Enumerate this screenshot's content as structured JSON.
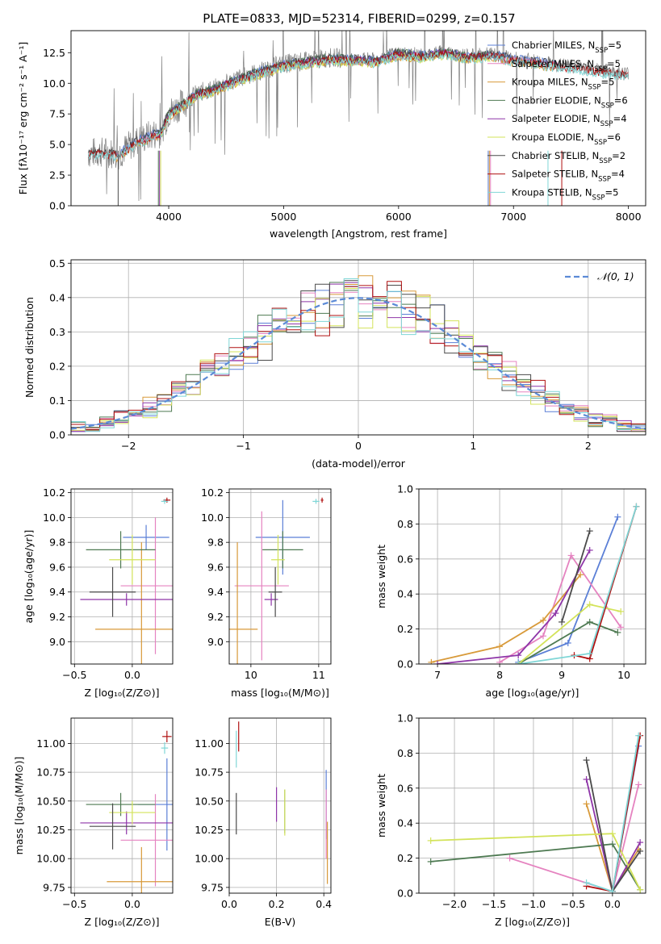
{
  "figure_title": "PLATE=0833, MJD=52314, FIBERID=0299, z=0.157",
  "colors": {
    "Chabrier MILES": "#5b7fd6",
    "Salpeter MILES": "#e583c0",
    "Kroupa MILES": "#d89a3a",
    "Chabrier ELODIE": "#4e7a52",
    "Salpeter ELODIE": "#8e35a8",
    "Kroupa ELODIE": "#d3e35a",
    "Chabrier STELIB": "#4a4a4a",
    "Salpeter STELIB": "#b01010",
    "Kroupa STELIB": "#7fd6d6",
    "normal": "#5b8ad6",
    "grid": "#b0b0b0",
    "orange_track": "#e07820"
  },
  "chart_data": [
    {
      "id": "spectrum",
      "type": "line",
      "xlabel": "wavelength [Angstrom, rest frame]",
      "ylabel": "Flux [fλ10⁻¹⁷ erg cm⁻² s⁻¹ A⁻¹]",
      "xlim": [
        3150,
        8150
      ],
      "ylim": [
        0,
        14.3
      ],
      "xticks": [
        4000,
        5000,
        6000,
        7000,
        8000
      ],
      "yticks": [
        0.0,
        2.5,
        5.0,
        7.5,
        10.0,
        12.5
      ],
      "grid": false,
      "legend_position": "right",
      "data_color": "#808080",
      "spectrum_knots": {
        "x": [
          3300,
          3450,
          3560,
          3700,
          3850,
          3930,
          4000,
          4100,
          4250,
          4400,
          4600,
          4800,
          5000,
          5200,
          5400,
          5600,
          5800,
          6000,
          6200,
          6400,
          6600,
          6800,
          7000,
          7200,
          7400,
          7600,
          7800,
          8000
        ],
        "y": [
          4.3,
          4.4,
          4.2,
          5.2,
          5.8,
          6.0,
          7.6,
          8.2,
          9.2,
          9.6,
          10.4,
          11.0,
          11.6,
          11.8,
          12.1,
          12.0,
          11.9,
          12.5,
          12.3,
          12.6,
          12.2,
          12.4,
          12.0,
          11.8,
          11.5,
          11.3,
          11.0,
          10.8
        ]
      },
      "series": [
        {
          "name": "Chabrier MILES",
          "nssp": "5",
          "x_range": [
            3540,
            7400
          ]
        },
        {
          "name": "Salpeter MILES",
          "nssp": "5",
          "x_range": [
            3540,
            7400
          ]
        },
        {
          "name": "Kroupa MILES",
          "nssp": "5",
          "x_range": [
            3540,
            7400
          ]
        },
        {
          "name": "Chabrier ELODIE",
          "nssp": "6",
          "x_range": [
            3900,
            6800
          ]
        },
        {
          "name": "Salpeter ELODIE",
          "nssp": "4",
          "x_range": [
            3900,
            6800
          ]
        },
        {
          "name": "Kroupa ELODIE",
          "nssp": "6",
          "x_range": [
            3900,
            6800
          ]
        },
        {
          "name": "Chabrier STELIB",
          "nssp": "2",
          "x_range": [
            3300,
            8000
          ]
        },
        {
          "name": "Salpeter STELIB",
          "nssp": "4",
          "x_range": [
            3300,
            8000
          ]
        },
        {
          "name": "Kroupa STELIB",
          "nssp": "5",
          "x_range": [
            3300,
            8000
          ]
        }
      ]
    },
    {
      "id": "residuals",
      "type": "line",
      "xlabel": "(data-model)/error",
      "ylabel": "Normed distribution",
      "xlim": [
        -2.5,
        2.5
      ],
      "ylim": [
        0,
        0.51
      ],
      "xticks": [
        -2,
        -1,
        0,
        1,
        2
      ],
      "yticks": [
        0.0,
        0.1,
        0.2,
        0.3,
        0.4,
        0.5
      ],
      "grid": true,
      "legend": "N(0,1)",
      "legend_position": "top-right"
    },
    {
      "id": "age_vs_Z",
      "type": "scatter",
      "xlabel": "Z [log₁₀(Z/Z⊙)]",
      "ylabel": "age [log₁₀(age/yr)]",
      "xlim": [
        -0.53,
        0.35
      ],
      "ylim": [
        8.82,
        10.23
      ],
      "xticks": [
        -0.5,
        0.0
      ],
      "yticks": [
        9.0,
        9.2,
        9.4,
        9.6,
        9.8,
        10.0,
        10.2
      ],
      "grid": true,
      "points": [
        {
          "series": "Chabrier MILES",
          "x": 0.12,
          "y": 9.84,
          "xerr": 0.2,
          "yerr": 0.1
        },
        {
          "series": "Salpeter MILES",
          "x": 0.2,
          "y": 9.45,
          "xerr": 0.3,
          "yerr": 0.55
        },
        {
          "series": "Kroupa MILES",
          "x": 0.08,
          "y": 9.1,
          "xerr": 0.4,
          "yerr": 0.7
        },
        {
          "series": "Chabrier ELODIE",
          "x": -0.1,
          "y": 9.74,
          "xerr": 0.3,
          "yerr": 0.15
        },
        {
          "series": "Salpeter ELODIE",
          "x": -0.05,
          "y": 9.34,
          "xerr": 0.4,
          "yerr": 0.05
        },
        {
          "series": "Kroupa ELODIE",
          "x": 0.0,
          "y": 9.66,
          "xerr": 0.2,
          "yerr": 0.2
        },
        {
          "series": "Chabrier STELIB",
          "x": -0.17,
          "y": 9.4,
          "xerr": 0.2,
          "yerr": 0.2
        },
        {
          "series": "Salpeter STELIB",
          "x": 0.3,
          "y": 10.14,
          "xerr": 0.03,
          "yerr": 0.02
        },
        {
          "series": "Kroupa STELIB",
          "x": 0.28,
          "y": 10.13,
          "xerr": 0.03,
          "yerr": 0.02
        }
      ]
    },
    {
      "id": "age_vs_mass",
      "type": "scatter",
      "xlabel": "mass [log₁₀(M/M⊙)]",
      "ylabel": "",
      "xlim": [
        9.68,
        11.18
      ],
      "ylim": [
        8.82,
        10.23
      ],
      "xticks": [
        10,
        11
      ],
      "yticks": [
        9.0,
        9.2,
        9.4,
        9.6,
        9.8,
        10.0,
        10.2
      ],
      "grid": true,
      "points": [
        {
          "series": "Chabrier MILES",
          "x": 10.47,
          "y": 9.84,
          "xerr": 0.4,
          "yerr": 0.3
        },
        {
          "series": "Salpeter MILES",
          "x": 10.16,
          "y": 9.45,
          "xerr": 0.4,
          "yerr": 0.6
        },
        {
          "series": "Kroupa MILES",
          "x": 9.8,
          "y": 9.1,
          "xerr": 0.3,
          "yerr": 0.7
        },
        {
          "series": "Chabrier ELODIE",
          "x": 10.47,
          "y": 9.74,
          "xerr": 0.3,
          "yerr": 0.15
        },
        {
          "series": "Salpeter ELODIE",
          "x": 10.3,
          "y": 9.34,
          "xerr": 0.1,
          "yerr": 0.05
        },
        {
          "series": "Kroupa ELODIE",
          "x": 10.4,
          "y": 9.66,
          "xerr": 0.1,
          "yerr": 0.2
        },
        {
          "series": "Chabrier STELIB",
          "x": 10.36,
          "y": 9.4,
          "xerr": 0.1,
          "yerr": 0.2
        },
        {
          "series": "Salpeter STELIB",
          "x": 11.05,
          "y": 10.14,
          "xerr": 0.02,
          "yerr": 0.02
        },
        {
          "series": "Kroupa STELIB",
          "x": 10.96,
          "y": 10.13,
          "xerr": 0.05,
          "yerr": 0.02
        }
      ]
    },
    {
      "id": "mass_weight_vs_age",
      "type": "line",
      "xlabel": "age [log₁₀(age/yr)]",
      "ylabel": "mass weight",
      "xlim": [
        6.7,
        10.35
      ],
      "ylim": [
        0,
        1.0
      ],
      "xticks": [
        7,
        8,
        9,
        10
      ],
      "yticks": [
        0.0,
        0.2,
        0.4,
        0.6,
        0.8,
        1.0
      ],
      "grid": true,
      "series": [
        {
          "name": "Chabrier MILES",
          "x": [
            8.3,
            9.1,
            9.9
          ],
          "y": [
            0.01,
            0.12,
            0.84
          ]
        },
        {
          "name": "Salpeter MILES",
          "x": [
            8.0,
            8.7,
            9.15,
            9.95
          ],
          "y": [
            0.01,
            0.16,
            0.62,
            0.21
          ]
        },
        {
          "name": "Kroupa MILES",
          "x": [
            6.9,
            8.0,
            8.7,
            9.3
          ],
          "y": [
            0.01,
            0.1,
            0.25,
            0.51
          ]
        },
        {
          "name": "Chabrier ELODIE",
          "x": [
            8.3,
            9.45,
            9.9
          ],
          "y": [
            0.0,
            0.24,
            0.18
          ]
        },
        {
          "name": "Salpeter ELODIE",
          "x": [
            7.0,
            8.3,
            8.9,
            9.45
          ],
          "y": [
            0.0,
            0.05,
            0.29,
            0.65
          ]
        },
        {
          "name": "Kroupa ELODIE",
          "x": [
            8.3,
            9.45,
            9.95
          ],
          "y": [
            0.0,
            0.34,
            0.3
          ]
        },
        {
          "name": "Chabrier STELIB",
          "x": [
            9.0,
            9.45
          ],
          "y": [
            0.24,
            0.76
          ]
        },
        {
          "name": "Salpeter STELIB",
          "x": [
            9.2,
            9.45,
            10.2
          ],
          "y": [
            0.05,
            0.03,
            0.9
          ]
        },
        {
          "name": "Kroupa STELIB",
          "x": [
            8.3,
            9.45,
            10.2
          ],
          "y": [
            0.0,
            0.06,
            0.9
          ]
        }
      ]
    },
    {
      "id": "mass_vs_Z",
      "type": "scatter",
      "xlabel": "Z [log₁₀(Z/Z⊙)]",
      "ylabel": "mass [log₁₀(M/M⊙)]",
      "xlim": [
        -0.53,
        0.35
      ],
      "ylim": [
        9.7,
        11.22
      ],
      "xticks": [
        -0.5,
        0.0
      ],
      "yticks": [
        9.75,
        10.0,
        10.25,
        10.5,
        10.75,
        11.0
      ],
      "grid": true,
      "points": [
        {
          "series": "Chabrier MILES",
          "x": 0.3,
          "y": 10.47,
          "xerr": 0.25,
          "yerr": 0.4
        },
        {
          "series": "Salpeter MILES",
          "x": 0.2,
          "y": 10.16,
          "xerr": 0.3,
          "yerr": 0.4
        },
        {
          "series": "Kroupa MILES",
          "x": 0.08,
          "y": 9.8,
          "xerr": 0.3,
          "yerr": 0.3
        },
        {
          "series": "Chabrier ELODIE",
          "x": -0.1,
          "y": 10.47,
          "xerr": 0.3,
          "yerr": 0.1
        },
        {
          "series": "Salpeter ELODIE",
          "x": -0.05,
          "y": 10.31,
          "xerr": 0.4,
          "yerr": 0.1
        },
        {
          "series": "Kroupa ELODIE",
          "x": 0.0,
          "y": 10.4,
          "xerr": 0.2,
          "yerr": 0.1
        },
        {
          "series": "Chabrier STELIB",
          "x": -0.17,
          "y": 10.28,
          "xerr": 0.2,
          "yerr": 0.2
        },
        {
          "series": "Salpeter STELIB",
          "x": 0.3,
          "y": 11.06,
          "xerr": 0.04,
          "yerr": 0.05
        },
        {
          "series": "Kroupa STELIB",
          "x": 0.28,
          "y": 10.96,
          "xerr": 0.03,
          "yerr": 0.05
        }
      ]
    },
    {
      "id": "mass_vs_ebv",
      "type": "scatter",
      "xlabel": "E(B-V)",
      "ylabel": "",
      "xlim": [
        0,
        0.43
      ],
      "ylim": [
        9.7,
        11.22
      ],
      "xticks": [
        0.0,
        0.2,
        0.4
      ],
      "yticks": [
        9.75,
        10.0,
        10.25,
        10.5,
        10.75,
        11.0
      ],
      "grid": true,
      "points": [
        {
          "series": "Chabrier MILES",
          "x": 0.41,
          "y": 10.47,
          "xerr": 0,
          "yerr": 0.3
        },
        {
          "series": "Salpeter MILES",
          "x": 0.41,
          "y": 10.3,
          "xerr": 0,
          "yerr": 0.3
        },
        {
          "series": "Kroupa MILES",
          "x": 0.415,
          "y": 10.05,
          "xerr": 0,
          "yerr": 0.27
        },
        {
          "series": "Chabrier ELODIE",
          "x": 0.235,
          "y": 10.41,
          "xerr": 0,
          "yerr": 0.19
        },
        {
          "series": "Salpeter ELODIE",
          "x": 0.2,
          "y": 10.47,
          "xerr": 0,
          "yerr": 0.15
        },
        {
          "series": "Kroupa ELODIE",
          "x": 0.235,
          "y": 10.4,
          "xerr": 0,
          "yerr": 0.2
        },
        {
          "series": "Chabrier STELIB",
          "x": 0.03,
          "y": 10.39,
          "xerr": 0,
          "yerr": 0.18
        },
        {
          "series": "Salpeter STELIB",
          "x": 0.04,
          "y": 11.06,
          "xerr": 0,
          "yerr": 0.13
        },
        {
          "series": "Kroupa STELIB",
          "x": 0.03,
          "y": 10.95,
          "xerr": 0,
          "yerr": 0.16
        }
      ]
    },
    {
      "id": "mass_weight_vs_Z",
      "type": "line",
      "xlabel": "Z [log₁₀(Z/Z⊙)]",
      "ylabel": "mass weight",
      "xlim": [
        -2.45,
        0.42
      ],
      "ylim": [
        0,
        1.0
      ],
      "xticks": [
        -2.0,
        -1.5,
        -1.0,
        -0.5,
        0.0
      ],
      "yticks": [
        0.0,
        0.2,
        0.4,
        0.6,
        0.8,
        1.0
      ],
      "grid": true,
      "series": [
        {
          "name": "Chabrier MILES",
          "x": [
            0.0,
            0.33
          ],
          "y": [
            0.01,
            0.84
          ]
        },
        {
          "name": "Salpeter MILES",
          "x": [
            -1.3,
            0.0,
            0.33
          ],
          "y": [
            0.2,
            0.01,
            0.62
          ]
        },
        {
          "name": "Kroupa MILES",
          "x": [
            -0.33,
            0.0,
            0.33
          ],
          "y": [
            0.51,
            0.01,
            0.25
          ]
        },
        {
          "name": "Chabrier ELODIE",
          "x": [
            -2.3,
            0.0,
            0.35
          ],
          "y": [
            0.18,
            0.28,
            0.02
          ]
        },
        {
          "name": "Salpeter ELODIE",
          "x": [
            -0.33,
            0.0,
            0.35
          ],
          "y": [
            0.65,
            0.01,
            0.29
          ]
        },
        {
          "name": "Kroupa ELODIE",
          "x": [
            -2.3,
            0.0,
            0.35
          ],
          "y": [
            0.3,
            0.34,
            0.02
          ]
        },
        {
          "name": "Chabrier STELIB",
          "x": [
            -0.33,
            0.0,
            0.35
          ],
          "y": [
            0.76,
            0.01,
            0.24
          ]
        },
        {
          "name": "Salpeter STELIB",
          "x": [
            -0.33,
            0.0,
            0.35
          ],
          "y": [
            0.04,
            0.01,
            0.9
          ]
        },
        {
          "name": "Kroupa STELIB",
          "x": [
            -0.33,
            0.0,
            0.33
          ],
          "y": [
            0.06,
            0.01,
            0.9
          ]
        }
      ]
    }
  ]
}
